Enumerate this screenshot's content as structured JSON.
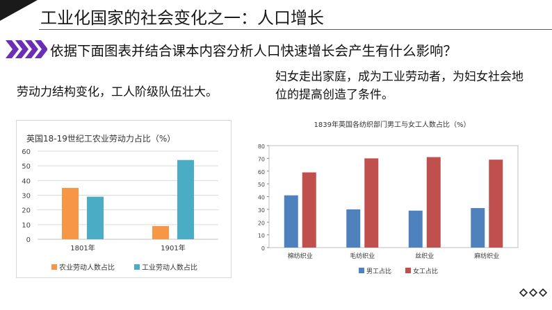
{
  "slide": {
    "title": "工业化国家的社会变化之一：人口增长",
    "question": "依据下面图表并结合课本内容分析人口快速增长会产生有什么影响？",
    "note_left": "劳动力结构变化，工人阶级队伍壮大。",
    "note_right": "妇女走出家庭，成为工业劳动者，为妇女社会地位的提高创造了条件。"
  },
  "colors": {
    "accent_purple": "#6a2fb5",
    "dark": "#1a1a1a"
  },
  "chart_data": [
    {
      "type": "bar",
      "title": "英国18-19世纪工农业劳动力占比（%）",
      "categories": [
        "1801年",
        "1901年"
      ],
      "series": [
        {
          "name": "农业劳动人数占比",
          "values": [
            35,
            9
          ],
          "color": "#f79646"
        },
        {
          "name": "工业劳动人数占比",
          "values": [
            29,
            54
          ],
          "color": "#4bacc6"
        }
      ],
      "ylim": [
        0,
        60
      ],
      "yticks": [
        0,
        10,
        20,
        30,
        40,
        50,
        60
      ],
      "grid": true,
      "legend": "bottom"
    },
    {
      "type": "bar",
      "title": "1839年英国各纺织部门男工与女工人数占比（%）",
      "categories": [
        "棉纺织业",
        "毛纺织业",
        "丝织业",
        "麻纺织业"
      ],
      "series": [
        {
          "name": "男工占比",
          "values": [
            41,
            30,
            29,
            31
          ],
          "color": "#4f81bd"
        },
        {
          "name": "女工占比",
          "values": [
            59,
            70,
            71,
            69
          ],
          "color": "#c0504d"
        }
      ],
      "ylim": [
        0,
        80
      ],
      "yticks": [
        0,
        10,
        20,
        30,
        40,
        50,
        60,
        70,
        80
      ],
      "grid": false,
      "legend": "bottom"
    }
  ]
}
